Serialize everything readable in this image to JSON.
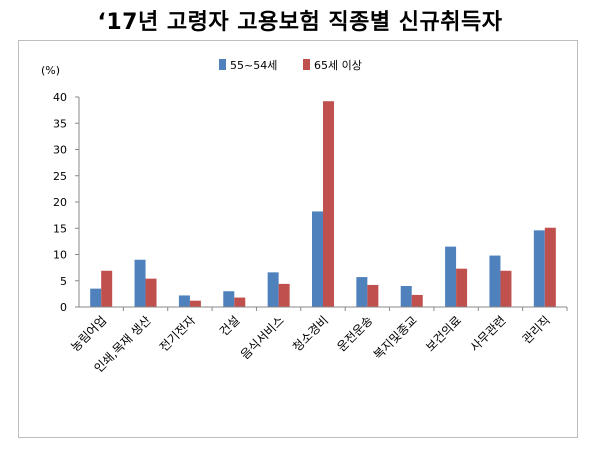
{
  "chart_data": {
    "type": "bar",
    "title": "‘17년 고령자 고용보험 직종별 신규취득자",
    "ylabel": "(%)",
    "ylim": [
      0,
      40
    ],
    "yticks": [
      0,
      5,
      10,
      15,
      20,
      25,
      30,
      35,
      40
    ],
    "grid": false,
    "legend_position": "top-center",
    "categories": [
      "농림어업",
      "인쇄,목재 생산",
      "전기전자",
      "건설",
      "음식서비스",
      "청소경비",
      "운전운송",
      "복지및종교",
      "보건의료",
      "사무관련",
      "관리직"
    ],
    "series": [
      {
        "name": "55~54세",
        "color": "#4f81bd",
        "values": [
          3.5,
          9.0,
          2.2,
          3.0,
          6.6,
          18.2,
          5.7,
          4.0,
          11.5,
          9.8,
          14.6
        ]
      },
      {
        "name": "65세 이상",
        "color": "#c0504d",
        "values": [
          6.9,
          5.4,
          1.2,
          1.8,
          4.4,
          39.2,
          4.2,
          2.3,
          7.3,
          6.9,
          15.1
        ]
      }
    ]
  }
}
